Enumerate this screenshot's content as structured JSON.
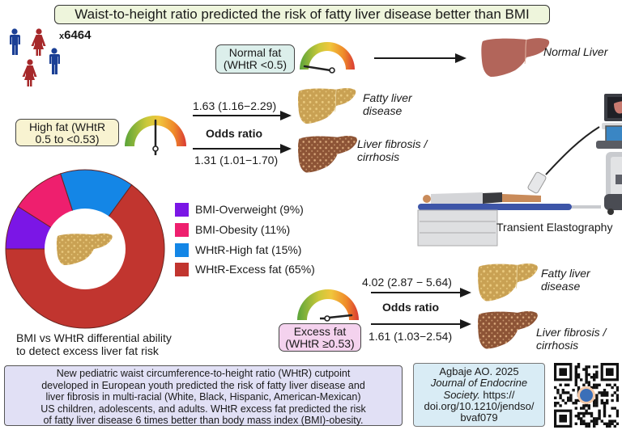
{
  "title": "Waist-to-height ratio predicted the risk of fatty liver disease better than BMI",
  "participants": {
    "prefix": "x",
    "count": "6464"
  },
  "groups": {
    "normal": {
      "label_line1": "Normal fat",
      "label_line2": "(WHtR <0.5)",
      "outcome": "Normal Liver"
    },
    "high": {
      "label_line1": "High fat (WHtR",
      "label_line2": "0.5 to <0.53)",
      "or_fatty": "1.63 (1.16−2.29)",
      "or_fibrosis": "1.31 (1.01−1.70)",
      "or_label": "Odds ratio",
      "outcome_fatty_1": "Fatty liver",
      "outcome_fatty_2": "disease",
      "outcome_fibrosis_1": "Liver fibrosis /",
      "outcome_fibrosis_2": "cirrhosis"
    },
    "excess": {
      "label_line1": "Excess fat",
      "label_line2": "(WHtR ≥0.53)",
      "or_fatty": "4.02 (2.87 − 5.64)",
      "or_fibrosis": "1.61 (1.03−2.54)",
      "or_label": "Odds ratio",
      "outcome_fatty_1": "Fatty liver",
      "outcome_fatty_2": "disease",
      "outcome_fibrosis_1": "Liver fibrosis /",
      "outcome_fibrosis_2": "cirrhosis"
    }
  },
  "device_label": "Transient Elastography",
  "chart_data": {
    "type": "pie",
    "variant": "donut",
    "title": "BMI vs WHtR differential ability to detect excess liver fat risk",
    "categories": [
      "BMI-Overweight",
      "BMI-Obesity",
      "WHtR-High fat",
      "WHtR-Excess fat"
    ],
    "values": [
      9,
      11,
      15,
      65
    ],
    "unit": "%",
    "colors": [
      "#7b16e6",
      "#ee1f6e",
      "#1486e6",
      "#c1352f"
    ],
    "legend_labels": [
      "BMI-Overweight (9%)",
      "BMI-Obesity (11%)",
      "WHtR-High fat (15%)",
      "WHtR-Excess fat (65%)"
    ],
    "legend_position": "right",
    "start_angle": "9 o'clock",
    "direction": "clockwise"
  },
  "caption_line1": "BMI vs WHtR differential ability",
  "caption_line2": "to detect excess liver fat risk",
  "summary_lines": [
    "New pediatric waist circumference-to-height ratio (WHtR) cutpoint",
    "developed in European youth predicted the risk of fatty liver disease and",
    "liver fibrosis in multi-racial (White, Black, Hispanic, American-Mexican)",
    "US children, adolescents, and adults. WHtR excess fat predicted the risk",
    "of fatty liver disease 6 times better than body mass index (BMI)-obesity."
  ],
  "citation": {
    "line1": "Agbaje AO. 2025",
    "journal_line1": "Journal of Endocrine",
    "journal_line2": "Society.",
    "url_part1": " https://",
    "url_part2": "doi.org/10.1210/jendso/",
    "url_part3": "bvaf079"
  },
  "colors": {
    "title_bg": "#eef5dc",
    "normal_bg": "#dcefeb",
    "high_bg": "#f8f3d1",
    "excess_bg": "#f4d2ee",
    "summary_bg": "#e1e0f5",
    "cite_bg": "#d9ecf5",
    "male": "#1b3f95",
    "female": "#a6282a"
  }
}
